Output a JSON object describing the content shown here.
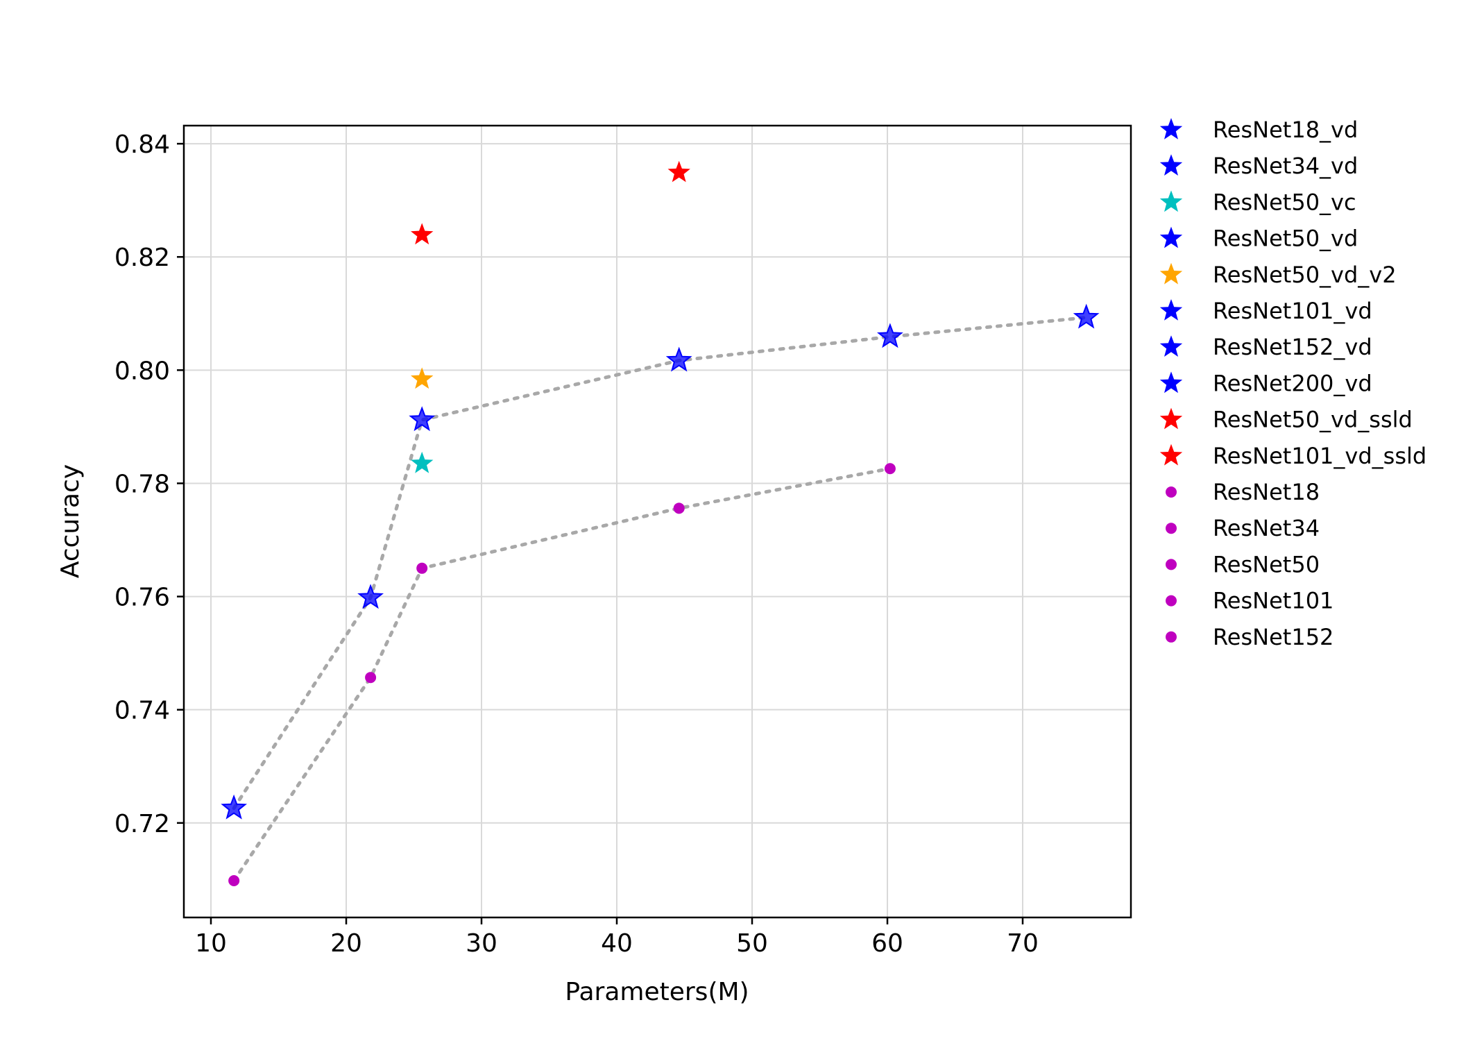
{
  "chart_data": {
    "type": "scatter",
    "xlabel": "Parameters(M)",
    "ylabel": "Accuracy",
    "xlim": [
      8,
      78
    ],
    "ylim": [
      0.7033,
      0.8432
    ],
    "xticks": [
      10,
      20,
      30,
      40,
      50,
      60,
      70
    ],
    "xtick_labels": [
      "10",
      "20",
      "30",
      "40",
      "50",
      "60",
      "70"
    ],
    "yticks": [
      0.72,
      0.74,
      0.76,
      0.78,
      0.8,
      0.82,
      0.84
    ],
    "ytick_labels": [
      "0.72",
      "0.74",
      "0.76",
      "0.78",
      "0.80",
      "0.82",
      "0.84"
    ],
    "grid": true,
    "legend_position": "outside-right",
    "colors": {
      "blue": "#0000ff",
      "cyan": "#00bfbf",
      "orange": "#ffa500",
      "red": "#ff0000",
      "magenta": "#bf00bf",
      "trend": "#a8a8a8"
    },
    "series": [
      {
        "name": "ResNet18_vd",
        "marker": "star",
        "color": "#0000ff",
        "x": [
          11.7
        ],
        "y": [
          0.7226
        ],
        "outline": true
      },
      {
        "name": "ResNet34_vd",
        "marker": "star",
        "color": "#0000ff",
        "x": [
          21.8
        ],
        "y": [
          0.7598
        ],
        "outline": true
      },
      {
        "name": "ResNet50_vc",
        "marker": "star",
        "color": "#00bfbf",
        "x": [
          25.6
        ],
        "y": [
          0.7835
        ]
      },
      {
        "name": "ResNet50_vd",
        "marker": "star",
        "color": "#0000ff",
        "x": [
          25.6
        ],
        "y": [
          0.7912
        ],
        "outline": true
      },
      {
        "name": "ResNet50_vd_v2",
        "marker": "star",
        "color": "#ffa500",
        "x": [
          25.6
        ],
        "y": [
          0.7984
        ]
      },
      {
        "name": "ResNet101_vd",
        "marker": "star",
        "color": "#0000ff",
        "x": [
          44.6
        ],
        "y": [
          0.8017
        ],
        "outline": true
      },
      {
        "name": "ResNet152_vd",
        "marker": "star",
        "color": "#0000ff",
        "x": [
          60.2
        ],
        "y": [
          0.8059
        ],
        "outline": true
      },
      {
        "name": "ResNet200_vd",
        "marker": "star",
        "color": "#0000ff",
        "x": [
          74.7
        ],
        "y": [
          0.8093
        ],
        "outline": true
      },
      {
        "name": "ResNet50_vd_ssld",
        "marker": "star",
        "color": "#ff0000",
        "x": [
          25.6
        ],
        "y": [
          0.8239
        ]
      },
      {
        "name": "ResNet101_vd_ssld",
        "marker": "star",
        "color": "#ff0000",
        "x": [
          44.6
        ],
        "y": [
          0.8349
        ]
      },
      {
        "name": "ResNet18",
        "marker": "circle",
        "color": "#bf00bf",
        "x": [
          11.7
        ],
        "y": [
          0.7098
        ]
      },
      {
        "name": "ResNet34",
        "marker": "circle",
        "color": "#bf00bf",
        "x": [
          21.8
        ],
        "y": [
          0.7457
        ]
      },
      {
        "name": "ResNet50",
        "marker": "circle",
        "color": "#bf00bf",
        "x": [
          25.6
        ],
        "y": [
          0.765
        ]
      },
      {
        "name": "ResNet101",
        "marker": "circle",
        "color": "#bf00bf",
        "x": [
          44.6
        ],
        "y": [
          0.7756
        ]
      },
      {
        "name": "ResNet152",
        "marker": "circle",
        "color": "#bf00bf",
        "x": [
          60.2
        ],
        "y": [
          0.7826
        ]
      }
    ],
    "trend_lines": [
      {
        "x": [
          11.7,
          21.8,
          25.6,
          44.6,
          60.2,
          74.7
        ],
        "y": [
          0.7226,
          0.7598,
          0.7912,
          0.8017,
          0.8059,
          0.8093
        ]
      },
      {
        "x": [
          11.7,
          21.8,
          25.6,
          44.6,
          60.2
        ],
        "y": [
          0.7098,
          0.7457,
          0.765,
          0.7756,
          0.7826
        ]
      }
    ]
  }
}
